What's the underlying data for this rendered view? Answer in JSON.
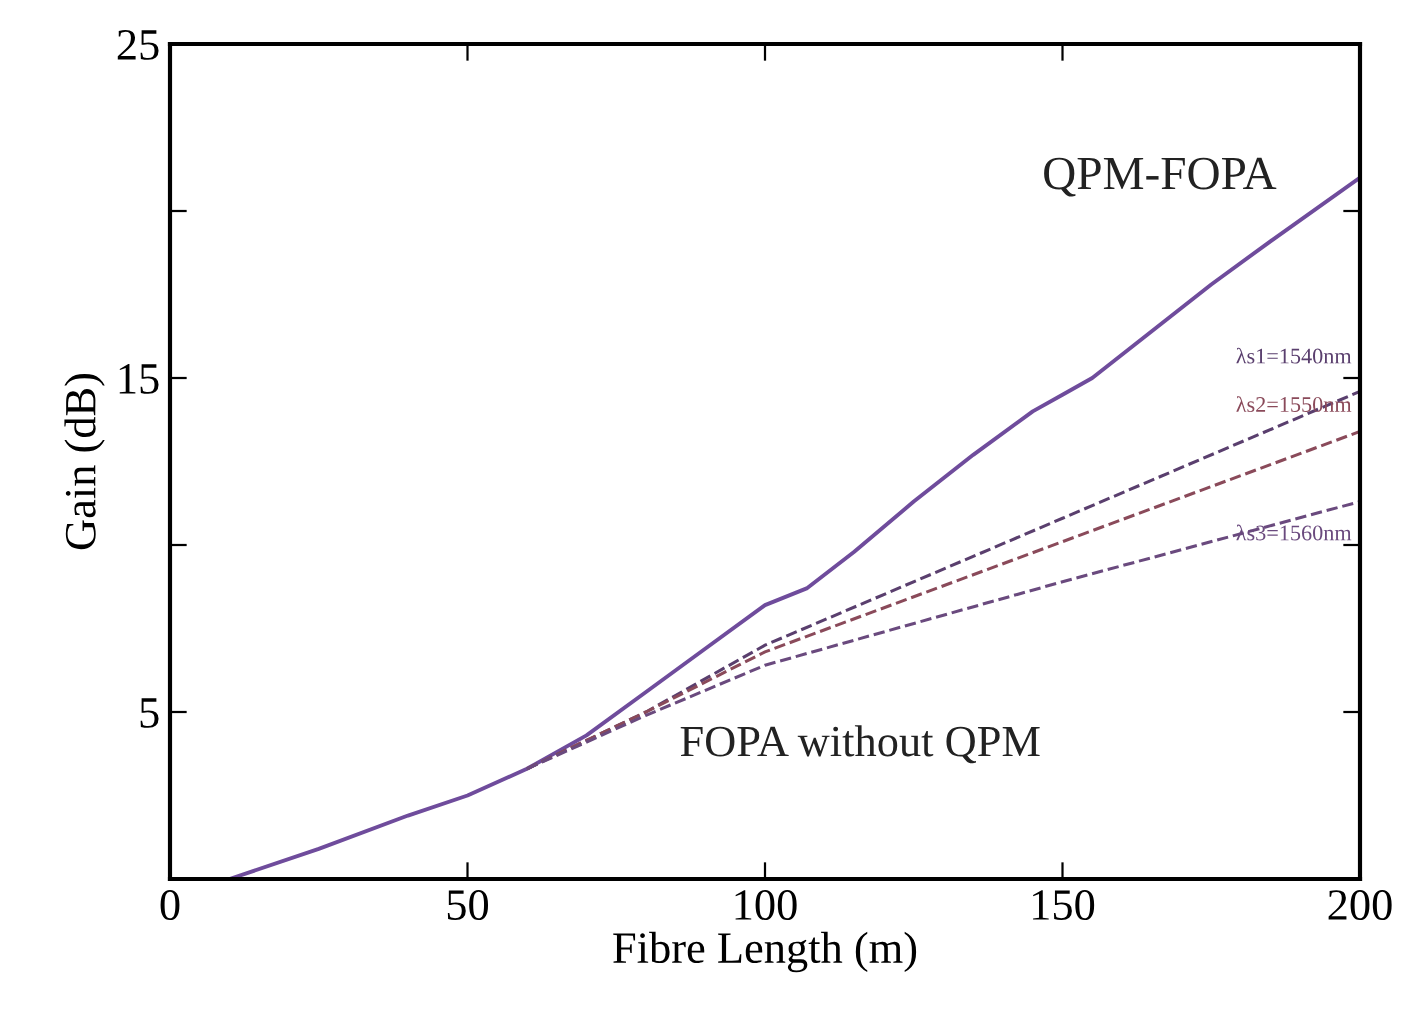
{
  "chart_data": {
    "type": "line",
    "xlabel": "Fibre Length (m)",
    "ylabel": "Gain (dB)",
    "xlim": [
      0,
      200
    ],
    "xticks": [
      0,
      50,
      100,
      150,
      200
    ],
    "ylim": [
      0,
      25
    ],
    "yticks": [
      {
        "value": 0,
        "label": null
      },
      5,
      {
        "value": 10,
        "label": null
      },
      15,
      {
        "value": 20,
        "label": null
      },
      25
    ],
    "grid": false,
    "legend": false,
    "marker": "none",
    "series": [
      {
        "name": "QPM-FOPA",
        "color": "#6f4c9c",
        "line_style": "solid",
        "x": [
          10,
          25,
          40,
          50,
          60,
          70,
          80,
          90,
          100,
          107,
          115,
          125,
          135,
          145,
          150,
          155,
          165,
          175,
          185,
          200
        ],
        "values": [
          0,
          0.9,
          1.9,
          2.5,
          3.3,
          4.3,
          5.6,
          6.9,
          8.2,
          8.7,
          9.8,
          11.3,
          12.7,
          14.0,
          14.5,
          15.0,
          16.4,
          17.8,
          19.1,
          21.0
        ]
      },
      {
        "name": "λs1=1540nm",
        "color": "#5a3f6e",
        "line_style": "dashed",
        "x": [
          60,
          80,
          100,
          150,
          200
        ],
        "values": [
          3.3,
          5.0,
          7.0,
          10.8,
          14.6
        ]
      },
      {
        "name": "λs2=1550nm",
        "color": "#8a4a5a",
        "line_style": "dashed",
        "x": [
          60,
          80,
          100,
          150,
          200
        ],
        "values": [
          3.3,
          5.0,
          6.8,
          10.1,
          13.4
        ]
      },
      {
        "name": "λs3=1560nm",
        "color": "#6a4a7e",
        "line_style": "dashed",
        "x": [
          60,
          80,
          100,
          150,
          200
        ],
        "values": [
          3.3,
          4.9,
          6.4,
          8.9,
          11.3
        ]
      }
    ],
    "annotations": [
      "FOPA without QPM"
    ]
  }
}
